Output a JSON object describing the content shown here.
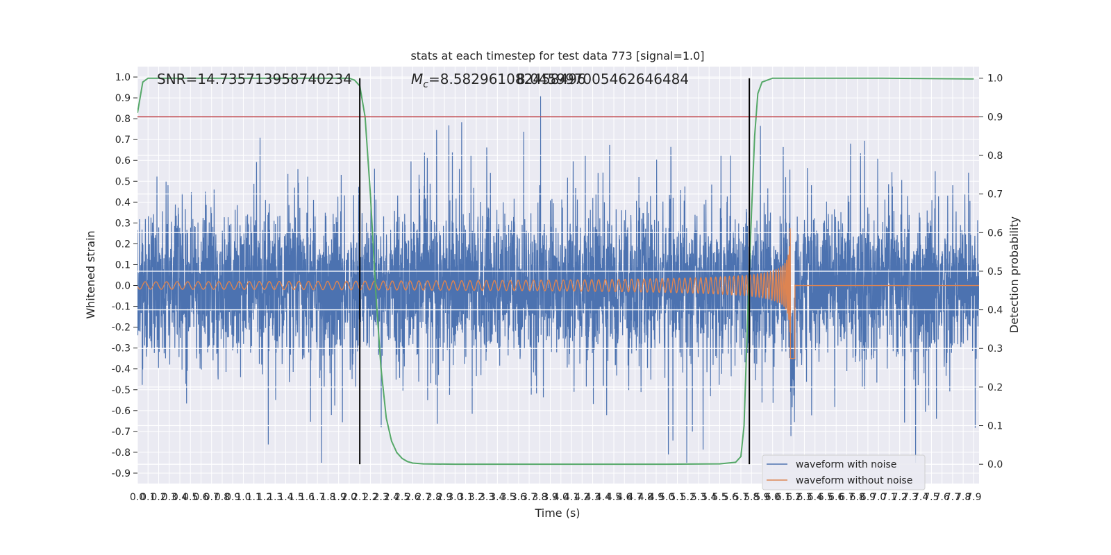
{
  "chart_data": {
    "type": "line",
    "title": "stats at each timestep for test data 773 [signal=1.0]",
    "xlabel": "Time (s)",
    "ylabel": "Whitened strain",
    "y2label": "Detection probability",
    "xlim": [
      0.0,
      7.95
    ],
    "ylim": [
      -0.95,
      1.05
    ],
    "y2lim": [
      -0.05,
      1.03
    ],
    "grid": true,
    "legend_position": "bottom-right",
    "x_ticks": [
      "0.0",
      "0.1",
      "0.2",
      "0.3",
      "0.4",
      "0.5",
      "0.6",
      "0.7",
      "0.8",
      "0.9",
      "1.0",
      "1.1",
      "1.2",
      "1.3",
      "1.4",
      "1.5",
      "1.6",
      "1.7",
      "1.8",
      "1.9",
      "2.0",
      "2.1",
      "2.2",
      "2.3",
      "2.4",
      "2.5",
      "2.6",
      "2.7",
      "2.8",
      "2.9",
      "3.0",
      "3.1",
      "3.2",
      "3.3",
      "3.4",
      "3.5",
      "3.6",
      "3.7",
      "3.8",
      "3.9",
      "4.0",
      "4.1",
      "4.2",
      "4.3",
      "4.4",
      "4.5",
      "4.6",
      "4.7",
      "4.8",
      "4.9",
      "5.0",
      "5.1",
      "5.2",
      "5.3",
      "5.4",
      "5.5",
      "5.6",
      "5.7",
      "5.8",
      "5.9",
      "6.0",
      "6.1",
      "6.2",
      "6.3",
      "6.4",
      "6.5",
      "6.6",
      "6.7",
      "6.8",
      "6.9",
      "7.0",
      "7.1",
      "7.2",
      "7.3",
      "7.4",
      "7.5",
      "7.6",
      "7.7",
      "7.8",
      "7.9"
    ],
    "y_ticks": [
      "1.0",
      "0.9",
      "0.8",
      "0.7",
      "0.6",
      "0.5",
      "0.4",
      "0.3",
      "0.2",
      "0.1",
      "0.0",
      "-0.1",
      "-0.2",
      "-0.3",
      "-0.4",
      "-0.5",
      "-0.6",
      "-0.7",
      "-0.8",
      "-0.9"
    ],
    "y2_ticks": [
      "1.0",
      "0.9",
      "0.8",
      "0.7",
      "0.6",
      "0.5",
      "0.4",
      "0.3",
      "0.2",
      "0.1",
      "0.0"
    ],
    "annotations": {
      "snr": "SNR=14.735713958740234",
      "mc_symbol": "M",
      "mc_sub": "c",
      "mc_rest": "=8.582961082458496",
      "mc_overlap": "8.045997005462646484"
    },
    "threshold": {
      "axis": "y2",
      "value": 0.9,
      "color": "#c44e52"
    },
    "vlines": [
      2.1,
      5.78
    ],
    "series": [
      {
        "name": "waveform with noise",
        "color": "#4c72b0",
        "description_type": "noise",
        "amplitude_range": [
          -0.85,
          1.0
        ]
      },
      {
        "name": "waveform without noise",
        "color": "#dd8452",
        "description_type": "chirp",
        "merger_time": 6.17,
        "peak_amplitude": [
          -0.35,
          0.45
        ]
      },
      {
        "name": "",
        "color": "#55a868",
        "axis": "y2",
        "x": [
          0.0,
          0.05,
          0.1,
          0.2,
          0.5,
          1.0,
          1.5,
          2.0,
          2.05,
          2.1,
          2.15,
          2.2,
          2.25,
          2.3,
          2.35,
          2.4,
          2.45,
          2.5,
          2.55,
          2.6,
          2.7,
          3.0,
          4.0,
          5.0,
          5.5,
          5.65,
          5.7,
          5.73,
          5.76,
          5.8,
          5.83,
          5.86,
          5.9,
          6.0,
          7.0,
          7.9
        ],
        "y": [
          0.91,
          0.99,
          1.0,
          1.0,
          1.0,
          1.0,
          1.0,
          1.0,
          0.995,
          0.98,
          0.9,
          0.7,
          0.45,
          0.25,
          0.12,
          0.06,
          0.03,
          0.015,
          0.007,
          0.003,
          0.001,
          0.0,
          0.0,
          0.0,
          0.001,
          0.005,
          0.02,
          0.1,
          0.35,
          0.65,
          0.85,
          0.96,
          0.99,
          1.0,
          1.0,
          0.998
        ]
      }
    ],
    "legend": [
      "waveform with noise",
      "waveform without noise"
    ]
  }
}
